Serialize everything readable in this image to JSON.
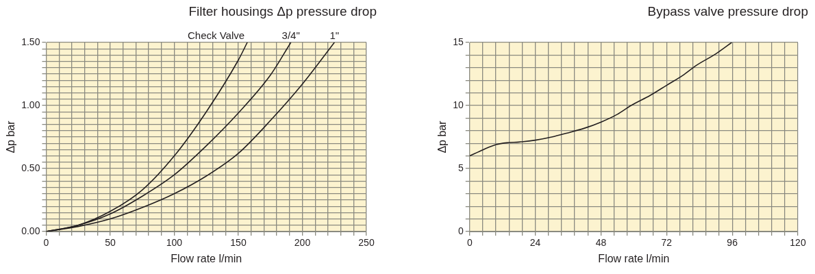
{
  "chart_data": [
    {
      "type": "line",
      "title": "Filter housings Δp pressure drop",
      "xlabel": "Flow rate l/min",
      "ylabel": "Δp bar",
      "xlim": [
        0,
        250
      ],
      "ylim": [
        0,
        1.5
      ],
      "xticks": [
        0,
        {
          "value": 10,
          "label": null
        },
        {
          "value": 20,
          "label": null
        },
        {
          "value": 30,
          "label": null
        },
        {
          "value": 40,
          "label": null
        },
        50,
        {
          "value": 60,
          "label": null
        },
        {
          "value": 70,
          "label": null
        },
        {
          "value": 80,
          "label": null
        },
        {
          "value": 90,
          "label": null
        },
        100,
        {
          "value": 110,
          "label": null
        },
        {
          "value": 120,
          "label": null
        },
        {
          "value": 130,
          "label": null
        },
        {
          "value": 140,
          "label": null
        },
        150,
        {
          "value": 160,
          "label": null
        },
        {
          "value": 170,
          "label": null
        },
        {
          "value": 180,
          "label": null
        },
        {
          "value": 190,
          "label": null
        },
        200,
        {
          "value": 210,
          "label": null
        },
        {
          "value": 220,
          "label": null
        },
        {
          "value": 230,
          "label": null
        },
        {
          "value": 240,
          "label": null
        },
        250
      ],
      "yticks": [
        {
          "value": 0,
          "label": "0.00"
        },
        {
          "value": 0.05,
          "label": null
        },
        {
          "value": 0.1,
          "label": null
        },
        {
          "value": 0.15,
          "label": null
        },
        {
          "value": 0.2,
          "label": null
        },
        {
          "value": 0.25,
          "label": null
        },
        {
          "value": 0.3,
          "label": null
        },
        {
          "value": 0.35,
          "label": null
        },
        {
          "value": 0.4,
          "label": null
        },
        {
          "value": 0.45,
          "label": null
        },
        {
          "value": 0.5,
          "label": "0.50"
        },
        {
          "value": 0.55,
          "label": null
        },
        {
          "value": 0.6,
          "label": null
        },
        {
          "value": 0.65,
          "label": null
        },
        {
          "value": 0.7,
          "label": null
        },
        {
          "value": 0.75,
          "label": null
        },
        {
          "value": 0.8,
          "label": null
        },
        {
          "value": 0.85,
          "label": null
        },
        {
          "value": 0.9,
          "label": null
        },
        {
          "value": 0.95,
          "label": null
        },
        {
          "value": 1.0,
          "label": "1.00"
        },
        {
          "value": 1.05,
          "label": null
        },
        {
          "value": 1.1,
          "label": null
        },
        {
          "value": 1.15,
          "label": null
        },
        {
          "value": 1.2,
          "label": null
        },
        {
          "value": 1.25,
          "label": null
        },
        {
          "value": 1.3,
          "label": null
        },
        {
          "value": 1.35,
          "label": null
        },
        {
          "value": 1.4,
          "label": null
        },
        {
          "value": 1.45,
          "label": null
        },
        {
          "value": 1.5,
          "label": "1.50"
        }
      ],
      "grid": true,
      "legend": false,
      "marker": "none",
      "line_style": "solid",
      "series": [
        {
          "name": "Check Valve",
          "color": "#231f20",
          "x": [
            0,
            25,
            50,
            75,
            100,
            125,
            150,
            157
          ],
          "values": [
            0,
            0.05,
            0.16,
            0.33,
            0.6,
            0.95,
            1.36,
            1.5
          ]
        },
        {
          "name": "3/4\"",
          "color": "#231f20",
          "x": [
            0,
            25,
            50,
            75,
            100,
            125,
            150,
            175,
            191
          ],
          "values": [
            0,
            0.05,
            0.14,
            0.28,
            0.45,
            0.68,
            0.94,
            1.24,
            1.5
          ]
        },
        {
          "name": "1\"",
          "color": "#231f20",
          "x": [
            0,
            25,
            50,
            75,
            100,
            125,
            150,
            175,
            200,
            225
          ],
          "values": [
            0,
            0.04,
            0.1,
            0.19,
            0.3,
            0.44,
            0.62,
            0.88,
            1.17,
            1.5
          ]
        }
      ]
    },
    {
      "type": "line",
      "title": "Bypass valve pressure drop",
      "xlabel": "Flow rate l/min",
      "ylabel": "Δp bar",
      "xlim": [
        0,
        120
      ],
      "ylim": [
        0,
        15
      ],
      "xticks": [
        0,
        {
          "value": 4.8,
          "label": null
        },
        {
          "value": 9.6,
          "label": null
        },
        {
          "value": 14.4,
          "label": null
        },
        {
          "value": 19.2,
          "label": null
        },
        24,
        {
          "value": 28.8,
          "label": null
        },
        {
          "value": 33.6,
          "label": null
        },
        {
          "value": 38.4,
          "label": null
        },
        {
          "value": 43.2,
          "label": null
        },
        48,
        {
          "value": 52.8,
          "label": null
        },
        {
          "value": 57.6,
          "label": null
        },
        {
          "value": 62.4,
          "label": null
        },
        {
          "value": 67.2,
          "label": null
        },
        72,
        {
          "value": 76.8,
          "label": null
        },
        {
          "value": 81.6,
          "label": null
        },
        {
          "value": 86.4,
          "label": null
        },
        {
          "value": 91.2,
          "label": null
        },
        96,
        {
          "value": 100.8,
          "label": null
        },
        {
          "value": 105.6,
          "label": null
        },
        {
          "value": 110.4,
          "label": null
        },
        {
          "value": 115.2,
          "label": null
        },
        120
      ],
      "yticks": [
        0,
        {
          "value": 1,
          "label": null
        },
        {
          "value": 2,
          "label": null
        },
        {
          "value": 3,
          "label": null
        },
        {
          "value": 4,
          "label": null
        },
        5,
        {
          "value": 6,
          "label": null
        },
        {
          "value": 7,
          "label": null
        },
        {
          "value": 8,
          "label": null
        },
        {
          "value": 9,
          "label": null
        },
        10,
        {
          "value": 11,
          "label": null
        },
        {
          "value": 12,
          "label": null
        },
        {
          "value": 13,
          "label": null
        },
        {
          "value": 14,
          "label": null
        },
        15
      ],
      "grid": true,
      "legend": false,
      "marker": "none",
      "line_style": "solid",
      "series": [
        {
          "color": "#231f20",
          "x": [
            0,
            5,
            9.7,
            14,
            18,
            24,
            30,
            35.4,
            42,
            48.2,
            54,
            59,
            66,
            72,
            78,
            83,
            90,
            95.8
          ],
          "values": [
            6.0,
            6.5,
            6.9,
            7.05,
            7.1,
            7.25,
            7.5,
            7.8,
            8.2,
            8.7,
            9.3,
            10,
            10.8,
            11.6,
            12.4,
            13.2,
            14.1,
            15
          ]
        }
      ]
    }
  ]
}
